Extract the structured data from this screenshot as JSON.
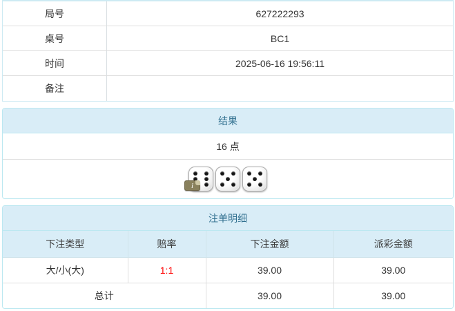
{
  "info_table": {
    "rows": [
      {
        "label": "局号",
        "value": "627222293"
      },
      {
        "label": "桌号",
        "value": "BC1"
      },
      {
        "label": "时间",
        "value": "2025-06-16 19:56:11"
      },
      {
        "label": "备注",
        "value": ""
      }
    ]
  },
  "result_panel": {
    "title": "结果",
    "points": "16 点",
    "dice": [
      6,
      5,
      5
    ],
    "info_badge": "i"
  },
  "bets_panel": {
    "title": "注单明细",
    "columns": [
      "下注类型",
      "赔率",
      "下注金额",
      "派彩金额"
    ],
    "rows": [
      {
        "bet_type": "大/小(大)",
        "odds": "1:1",
        "bet_amount": "39.00",
        "payout_amount": "39.00"
      }
    ],
    "total": {
      "label": "总计",
      "bet_amount": "39.00",
      "payout_amount": "39.00"
    }
  },
  "colors": {
    "panel_heading_bg": "#d9edf7",
    "panel_border": "#bce8f1",
    "heading_text": "#31708f",
    "table_border": "#dddddd",
    "body_text": "#333333",
    "odds_red": "#ff0000",
    "badge_olive": "#89805c"
  }
}
